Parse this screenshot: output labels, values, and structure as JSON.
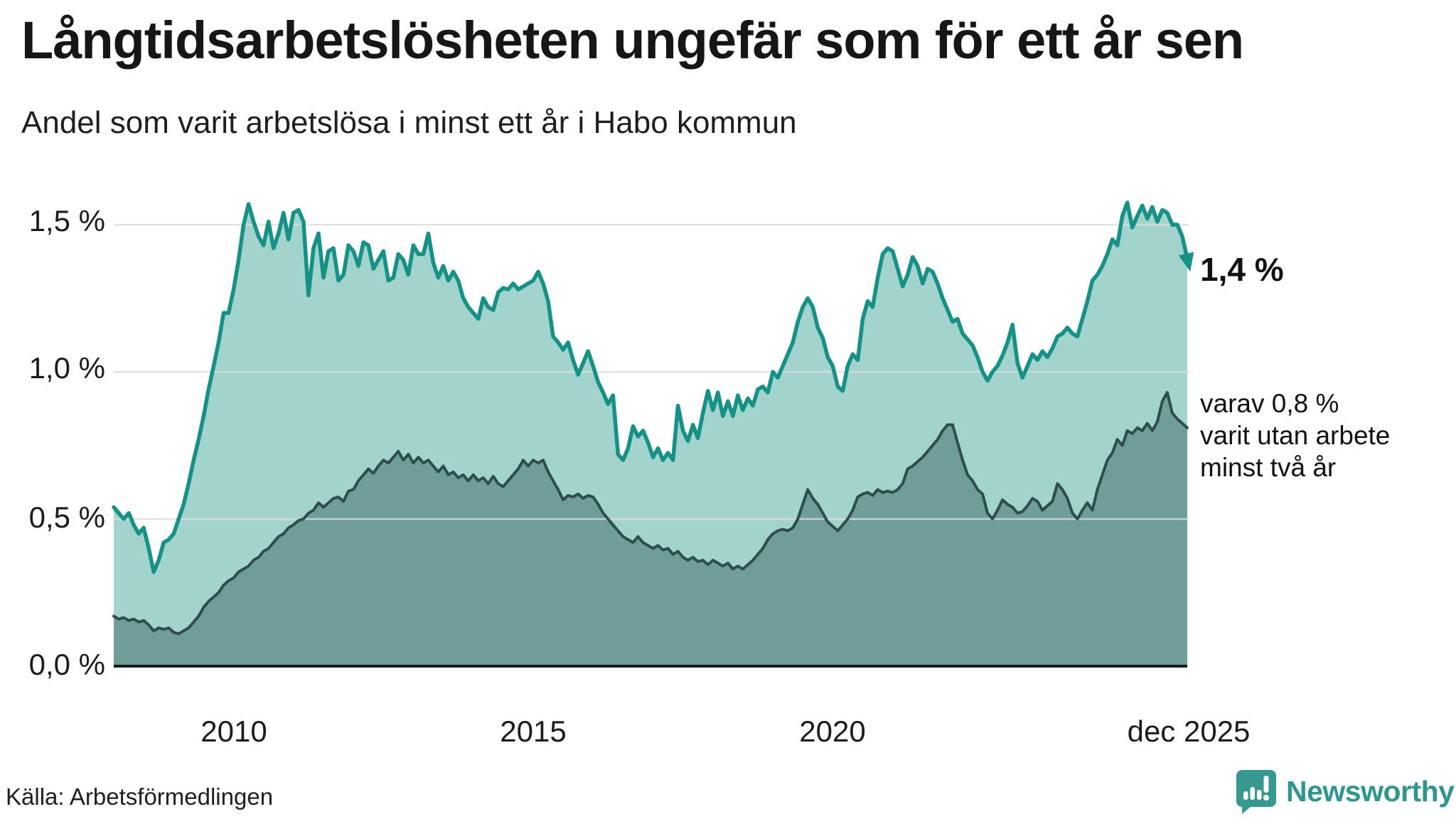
{
  "header": {
    "title": "Långtidsarbetslösheten ungefär som för ett år sen",
    "subtitle": "Andel som varit arbetslösa i minst ett år i Habo kommun"
  },
  "chart_data": {
    "type": "area",
    "title": "Långtidsarbetslösheten ungefär som för ett år sen",
    "subtitle": "Andel som varit arbetslösa i minst ett år i Habo kommun",
    "unit": "%",
    "x_start": "2008-01",
    "x_end": "2025-12",
    "frequency": "monthly",
    "ylim": [
      0,
      1.75
    ],
    "grid": "horizontal",
    "colors": {
      "line_total": "#169186",
      "fill_total": "#a3d3cd",
      "line_two_years": "#2e4e4d",
      "fill_two_years": "#6f9e9a",
      "gridline": "#d9dcdd",
      "baseline": "#1b1b1b"
    },
    "y_axis": {
      "ticks": [
        {
          "label": "1,5 %",
          "value": 1.5
        },
        {
          "label": "1,0 %",
          "value": 1.0
        },
        {
          "label": "0,5 %",
          "value": 0.5
        },
        {
          "label": "0,0 %",
          "value": 0.0
        }
      ]
    },
    "x_axis": {
      "ticks": [
        {
          "label": "2010",
          "month_index": 24
        },
        {
          "label": "2015",
          "month_index": 84
        },
        {
          "label": "2020",
          "month_index": 144
        },
        {
          "label": "dec 2025",
          "month_index": 215
        }
      ]
    },
    "series": [
      {
        "name": "arbetslösa minst ett år",
        "end_label": "1,4 %",
        "latest_value": 1.4,
        "values": [
          0.54,
          0.52,
          0.5,
          0.52,
          0.48,
          0.45,
          0.47,
          0.4,
          0.32,
          0.36,
          0.42,
          0.43,
          0.45,
          0.5,
          0.55,
          0.62,
          0.7,
          0.77,
          0.85,
          0.94,
          1.02,
          1.1,
          1.2,
          1.2,
          1.28,
          1.38,
          1.5,
          1.57,
          1.51,
          1.46,
          1.43,
          1.51,
          1.42,
          1.47,
          1.54,
          1.45,
          1.54,
          1.55,
          1.51,
          1.26,
          1.42,
          1.47,
          1.32,
          1.41,
          1.42,
          1.31,
          1.33,
          1.43,
          1.41,
          1.36,
          1.44,
          1.43,
          1.35,
          1.38,
          1.41,
          1.31,
          1.32,
          1.4,
          1.38,
          1.33,
          1.43,
          1.4,
          1.4,
          1.47,
          1.37,
          1.32,
          1.36,
          1.31,
          1.34,
          1.31,
          1.25,
          1.22,
          1.2,
          1.18,
          1.25,
          1.22,
          1.21,
          1.27,
          1.285,
          1.28,
          1.3,
          1.28,
          1.29,
          1.3,
          1.31,
          1.34,
          1.3,
          1.24,
          1.12,
          1.1,
          1.075,
          1.1,
          1.04,
          0.99,
          1.03,
          1.07,
          1.02,
          0.965,
          0.93,
          0.89,
          0.92,
          0.72,
          0.7,
          0.74,
          0.815,
          0.78,
          0.8,
          0.76,
          0.71,
          0.74,
          0.7,
          0.725,
          0.7,
          0.885,
          0.8,
          0.765,
          0.82,
          0.775,
          0.86,
          0.935,
          0.87,
          0.93,
          0.85,
          0.9,
          0.85,
          0.92,
          0.87,
          0.91,
          0.885,
          0.94,
          0.95,
          0.93,
          1.0,
          0.98,
          1.02,
          1.06,
          1.1,
          1.17,
          1.22,
          1.25,
          1.22,
          1.15,
          1.115,
          1.05,
          1.02,
          0.95,
          0.935,
          1.02,
          1.06,
          1.04,
          1.18,
          1.24,
          1.22,
          1.32,
          1.4,
          1.42,
          1.41,
          1.35,
          1.29,
          1.33,
          1.39,
          1.36,
          1.3,
          1.35,
          1.34,
          1.3,
          1.25,
          1.21,
          1.17,
          1.18,
          1.13,
          1.11,
          1.09,
          1.05,
          1.0,
          0.97,
          1.0,
          1.02,
          1.055,
          1.1,
          1.16,
          1.03,
          0.98,
          1.02,
          1.06,
          1.04,
          1.07,
          1.05,
          1.08,
          1.12,
          1.13,
          1.15,
          1.13,
          1.12,
          1.18,
          1.24,
          1.31,
          1.33,
          1.36,
          1.4,
          1.45,
          1.43,
          1.53,
          1.575,
          1.49,
          1.53,
          1.565,
          1.52,
          1.56,
          1.51,
          1.55,
          1.54,
          1.5,
          1.5,
          1.46,
          1.385
        ]
      },
      {
        "name": "varav utan arbete minst två år",
        "end_label": "varav 0,8 % varit utan arbete minst två år",
        "latest_value": 0.8,
        "values": [
          0.17,
          0.16,
          0.165,
          0.155,
          0.16,
          0.15,
          0.155,
          0.14,
          0.12,
          0.13,
          0.125,
          0.13,
          0.115,
          0.11,
          0.12,
          0.13,
          0.15,
          0.17,
          0.2,
          0.22,
          0.235,
          0.25,
          0.275,
          0.29,
          0.3,
          0.32,
          0.33,
          0.34,
          0.36,
          0.37,
          0.39,
          0.4,
          0.42,
          0.44,
          0.45,
          0.47,
          0.48,
          0.495,
          0.5,
          0.52,
          0.53,
          0.555,
          0.54,
          0.555,
          0.57,
          0.575,
          0.56,
          0.595,
          0.6,
          0.63,
          0.65,
          0.67,
          0.655,
          0.68,
          0.7,
          0.69,
          0.71,
          0.73,
          0.7,
          0.72,
          0.69,
          0.71,
          0.69,
          0.7,
          0.68,
          0.66,
          0.68,
          0.65,
          0.66,
          0.64,
          0.65,
          0.63,
          0.65,
          0.63,
          0.64,
          0.62,
          0.645,
          0.62,
          0.61,
          0.63,
          0.65,
          0.67,
          0.7,
          0.68,
          0.7,
          0.69,
          0.7,
          0.66,
          0.63,
          0.6,
          0.565,
          0.58,
          0.575,
          0.585,
          0.57,
          0.58,
          0.575,
          0.55,
          0.52,
          0.5,
          0.48,
          0.46,
          0.44,
          0.43,
          0.42,
          0.44,
          0.42,
          0.41,
          0.4,
          0.41,
          0.395,
          0.4,
          0.38,
          0.39,
          0.37,
          0.36,
          0.37,
          0.355,
          0.36,
          0.345,
          0.36,
          0.35,
          0.34,
          0.35,
          0.33,
          0.34,
          0.33,
          0.345,
          0.36,
          0.38,
          0.4,
          0.43,
          0.45,
          0.46,
          0.465,
          0.46,
          0.47,
          0.5,
          0.55,
          0.6,
          0.57,
          0.55,
          0.52,
          0.49,
          0.475,
          0.46,
          0.48,
          0.5,
          0.53,
          0.575,
          0.585,
          0.59,
          0.58,
          0.6,
          0.59,
          0.595,
          0.59,
          0.6,
          0.62,
          0.67,
          0.68,
          0.695,
          0.71,
          0.73,
          0.75,
          0.77,
          0.8,
          0.82,
          0.82,
          0.76,
          0.7,
          0.65,
          0.63,
          0.6,
          0.585,
          0.52,
          0.5,
          0.53,
          0.565,
          0.55,
          0.54,
          0.52,
          0.525,
          0.545,
          0.57,
          0.56,
          0.53,
          0.545,
          0.56,
          0.62,
          0.6,
          0.57,
          0.52,
          0.5,
          0.53,
          0.555,
          0.53,
          0.6,
          0.65,
          0.7,
          0.725,
          0.77,
          0.75,
          0.8,
          0.79,
          0.81,
          0.8,
          0.825,
          0.8,
          0.83,
          0.9,
          0.93,
          0.86,
          0.84,
          0.825,
          0.81
        ]
      }
    ]
  },
  "annotations": {
    "latest_total": "1,4 %",
    "two_year_lines": [
      "varav 0,8 %",
      "varit utan arbete",
      "minst två år"
    ]
  },
  "footer": {
    "source": "Källa: Arbetsförmedlingen",
    "brand": "Newsworthy"
  }
}
